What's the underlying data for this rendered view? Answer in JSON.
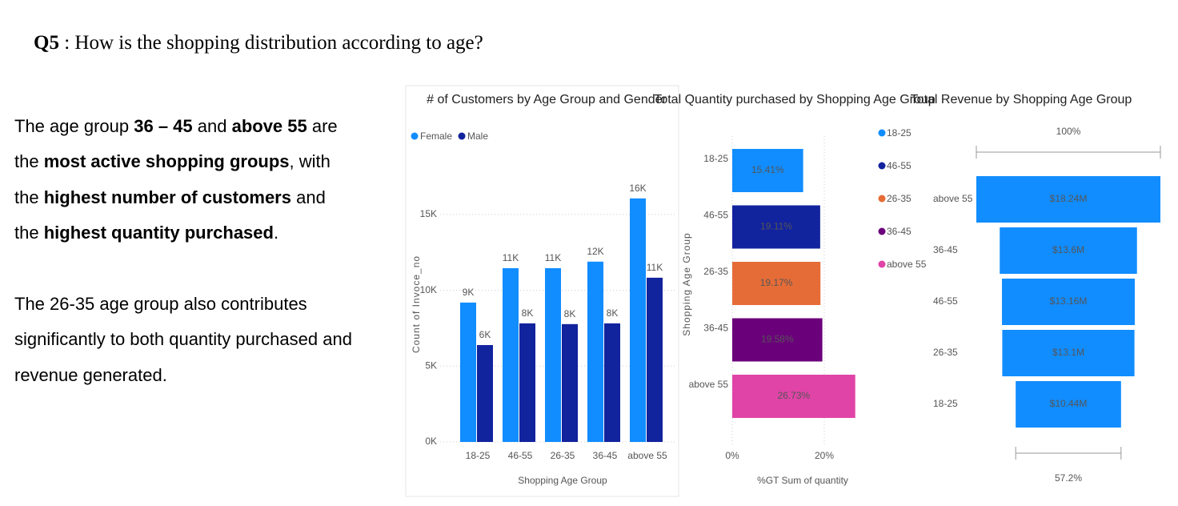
{
  "heading": {
    "label": "Q5",
    "text": " : How is the shopping distribution according to age?"
  },
  "body_text": {
    "lines": [
      [
        {
          "text": "The age group "
        },
        {
          "text": "36 – 45",
          "bold": true
        },
        {
          "text": " and "
        },
        {
          "text": "above 55",
          "bold": true
        },
        {
          "text": " are"
        }
      ],
      [
        {
          "text": "the "
        },
        {
          "text": "most active shopping groups",
          "bold": true
        },
        {
          "text": ", with"
        }
      ],
      [
        {
          "text": "the "
        },
        {
          "text": "highest number of customers",
          "bold": true
        },
        {
          "text": " and"
        }
      ],
      [
        {
          "text": "the "
        },
        {
          "text": "highest quantity purchased",
          "bold": true
        },
        {
          "text": "."
        }
      ],
      [
        {
          "text": "The 26-35 age group also contributes"
        }
      ],
      [
        {
          "text": "significantly to both quantity purchased and"
        }
      ],
      [
        {
          "text": "revenue generated."
        }
      ]
    ]
  },
  "chart_data": [
    {
      "type": "bar",
      "title": "# of Customers by Age Group and Gender",
      "x_label": "Shopping Age Group",
      "y_label": "Count of Invoce_no",
      "categories": [
        "18-25",
        "46-55",
        "26-35",
        "36-45",
        "above 55"
      ],
      "series": [
        {
          "name": "Female",
          "color": "#118dff",
          "values": [
            9190,
            11460,
            11460,
            11890,
            16060
          ],
          "value_labels": [
            "9K",
            "11K",
            "11K",
            "12K",
            "16K"
          ]
        },
        {
          "name": "Male",
          "color": "#12239e",
          "values": [
            6390,
            7820,
            7770,
            7820,
            10830
          ],
          "value_labels": [
            "6K",
            "8K",
            "8K",
            "8K",
            "11K"
          ]
        }
      ],
      "ylim": [
        0,
        17000
      ],
      "yticks": [
        {
          "value": 0,
          "label": "0K"
        },
        {
          "value": 5000,
          "label": "5K"
        },
        {
          "value": 10000,
          "label": "10K"
        },
        {
          "value": 15000,
          "label": "15K"
        }
      ],
      "grid": true,
      "legend": "top-left"
    },
    {
      "type": "hbar",
      "title": "Total Quantity purchased by Shopping Age Group",
      "x_label": "%GT Sum of quantity",
      "y_label": "Shopping Age Group",
      "categories": [
        "18-25",
        "46-55",
        "26-35",
        "36-45",
        "above 55"
      ],
      "values": [
        15.41,
        19.11,
        19.17,
        19.58,
        26.73
      ],
      "value_labels": [
        "15.41%",
        "19.11%",
        "19.17%",
        "19.58%",
        "26.73%"
      ],
      "colors": [
        "#118dff",
        "#12239e",
        "#e66c37",
        "#6b007b",
        "#e044a7"
      ],
      "xlim": [
        0,
        30
      ],
      "xticks": [
        {
          "value": 0,
          "label": "0%"
        },
        {
          "value": 20,
          "label": "20%"
        }
      ],
      "grid": true,
      "legend": "right"
    },
    {
      "type": "funnel",
      "title": "Total Revenue by Shopping Age Group",
      "categories": [
        "above 55",
        "36-45",
        "46-55",
        "26-35",
        "18-25"
      ],
      "values": [
        18240000,
        13600000,
        13160000,
        13100000,
        10440000
      ],
      "value_labels": [
        "$18.24M",
        "$13.6M",
        "$13.16M",
        "$13.1M",
        "$10.44M"
      ],
      "color": "#118dff",
      "first_percent_label": "100%",
      "last_percent_label": "57.2%"
    }
  ]
}
